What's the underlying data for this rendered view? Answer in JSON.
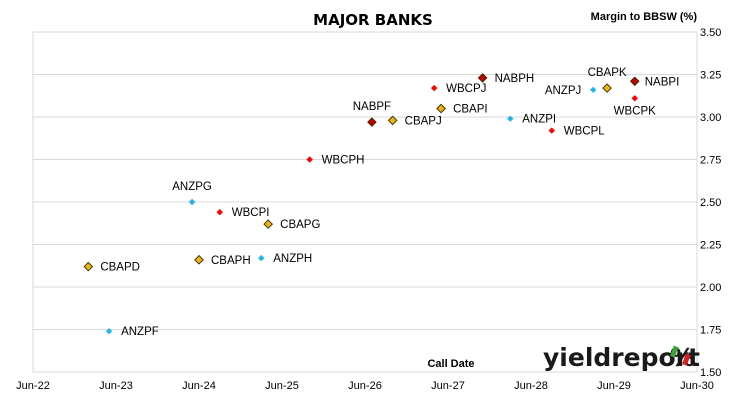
{
  "chart_data": {
    "type": "scatter",
    "title": "MAJOR BANKS",
    "ylabel": "Margin to BBSW (%)",
    "xlabel": "Call Date",
    "xlim": [
      "2022-06",
      "2030-06"
    ],
    "ylim": [
      1.5,
      3.5
    ],
    "x_ticks": [
      "Jun-22",
      "Jun-23",
      "Jun-24",
      "Jun-25",
      "Jun-26",
      "Jun-27",
      "Jun-28",
      "Jun-29",
      "Jun-30"
    ],
    "y_ticks": [
      "1.50",
      "1.75",
      "2.00",
      "2.25",
      "2.50",
      "2.75",
      "3.00",
      "3.25",
      "3.50"
    ],
    "grid": "horizontal",
    "logo": "yieldreport%",
    "colors": {
      "ANZ": "#22b5e6",
      "CBA": "#e8b410",
      "NAB": "#c00000",
      "WBC": "#ff0000"
    },
    "points": [
      {
        "label": "CBAPD",
        "bank": "CBA",
        "x": "2023-02",
        "y": 2.12
      },
      {
        "label": "ANZPF",
        "bank": "ANZ",
        "x": "2023-05",
        "y": 1.74
      },
      {
        "label": "ANZPG",
        "bank": "ANZ",
        "x": "2024-05",
        "y": 2.5
      },
      {
        "label": "CBAPH",
        "bank": "CBA",
        "x": "2024-06",
        "y": 2.16
      },
      {
        "label": "WBCPI",
        "bank": "WBC",
        "x": "2024-09",
        "y": 2.44
      },
      {
        "label": "CBAPG",
        "bank": "CBA",
        "x": "2025-04",
        "y": 2.37
      },
      {
        "label": "ANZPH",
        "bank": "ANZ",
        "x": "2025-03",
        "y": 2.17
      },
      {
        "label": "WBCPH",
        "bank": "WBC",
        "x": "2025-10",
        "y": 2.75
      },
      {
        "label": "NABPF",
        "bank": "NAB",
        "x": "2026-07",
        "y": 2.97
      },
      {
        "label": "CBAPJ",
        "bank": "CBA",
        "x": "2026-10",
        "y": 2.98
      },
      {
        "label": "WBCPJ",
        "bank": "WBC",
        "x": "2027-04",
        "y": 3.17
      },
      {
        "label": "CBAPI",
        "bank": "CBA",
        "x": "2027-05",
        "y": 3.05
      },
      {
        "label": "NABPH",
        "bank": "NAB",
        "x": "2027-11",
        "y": 3.23
      },
      {
        "label": "ANZPI",
        "bank": "ANZ",
        "x": "2028-03",
        "y": 2.99
      },
      {
        "label": "WBCPL",
        "bank": "WBC",
        "x": "2028-09",
        "y": 2.92
      },
      {
        "label": "ANZPJ",
        "bank": "ANZ",
        "x": "2029-03",
        "y": 3.16
      },
      {
        "label": "CBAPK",
        "bank": "CBA",
        "x": "2029-05",
        "y": 3.17
      },
      {
        "label": "NABPI",
        "bank": "NAB",
        "x": "2029-09",
        "y": 3.21
      },
      {
        "label": "WBCPK",
        "bank": "WBC",
        "x": "2029-09",
        "y": 3.11
      }
    ]
  }
}
